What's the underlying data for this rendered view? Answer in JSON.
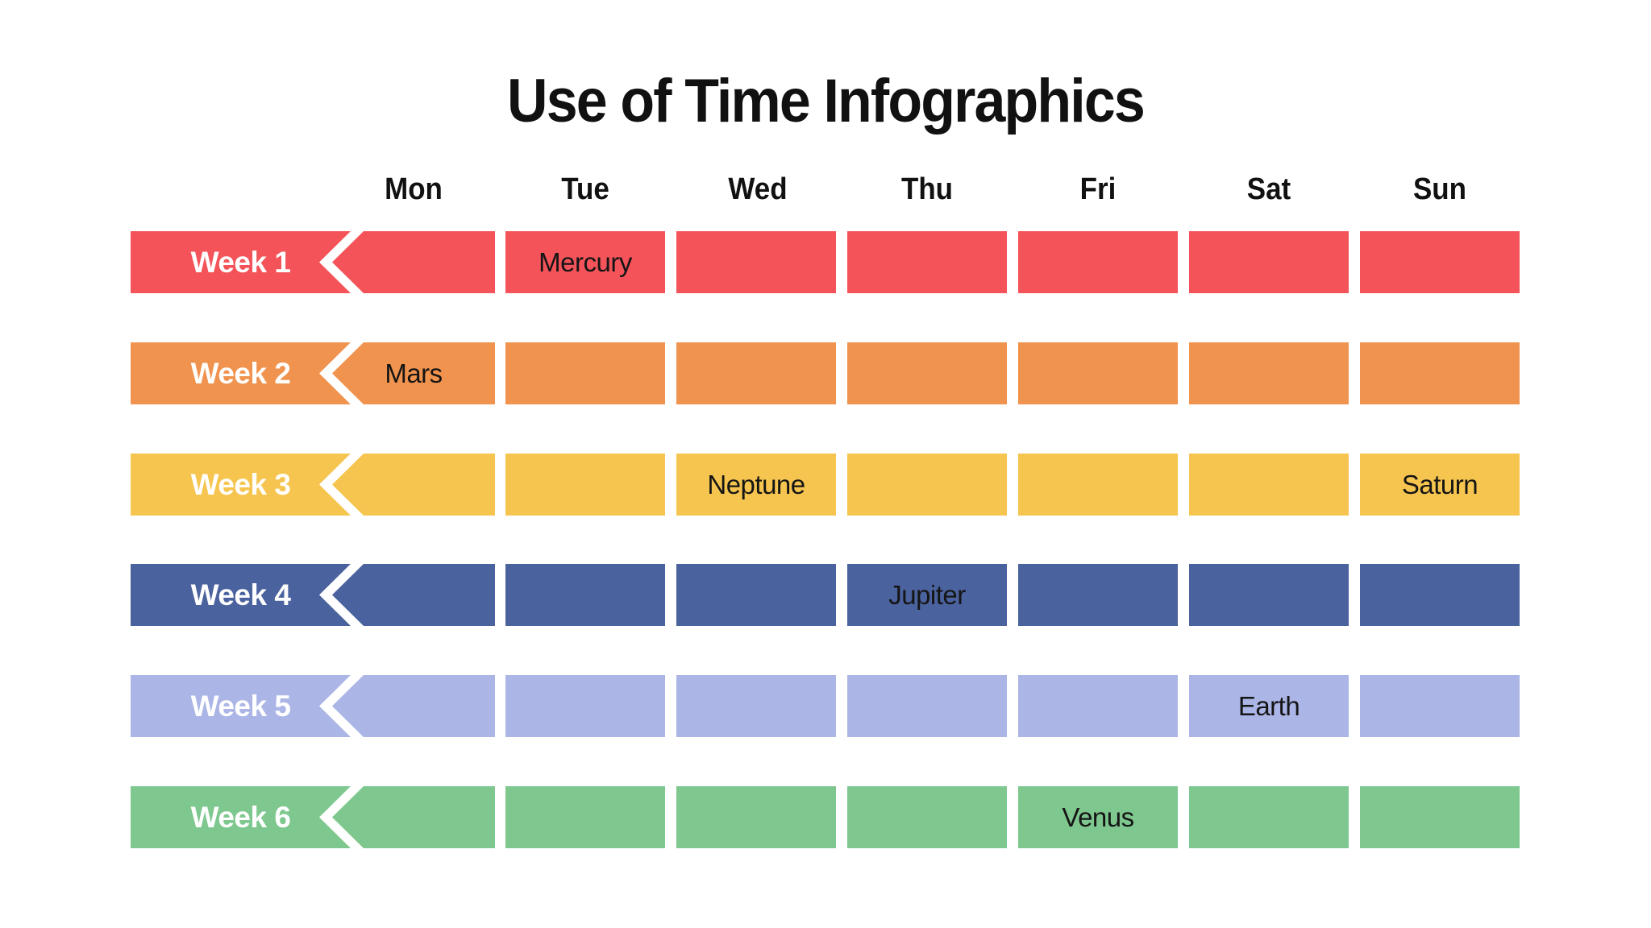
{
  "chart_data": {
    "type": "table",
    "title": "Use of Time Infographics",
    "columns": [
      "Mon",
      "Tue",
      "Wed",
      "Thu",
      "Fri",
      "Sat",
      "Sun"
    ],
    "rows": [
      {
        "label": "Week 1",
        "color": "#F45459",
        "cells": [
          "",
          "Mercury",
          "",
          "",
          "",
          "",
          ""
        ]
      },
      {
        "label": "Week 2",
        "color": "#F0934E",
        "cells": [
          "Mars",
          "",
          "",
          "",
          "",
          "",
          ""
        ]
      },
      {
        "label": "Week 3",
        "color": "#F6C54F",
        "cells": [
          "",
          "",
          "Neptune",
          "",
          "",
          "",
          "Saturn"
        ]
      },
      {
        "label": "Week 4",
        "color": "#4A629E",
        "cells": [
          "",
          "",
          "",
          "Jupiter",
          "",
          "",
          ""
        ]
      },
      {
        "label": "Week 5",
        "color": "#ABB5E6",
        "cells": [
          "",
          "",
          "",
          "",
          "",
          "Earth",
          ""
        ]
      },
      {
        "label": "Week 6",
        "color": "#7EC88F",
        "cells": [
          "",
          "",
          "",
          "",
          "Venus",
          "",
          ""
        ]
      }
    ],
    "layout": {
      "background": "#FFFFFF",
      "text_color": "#151515",
      "label_text_color": "#FFFFFF"
    }
  }
}
